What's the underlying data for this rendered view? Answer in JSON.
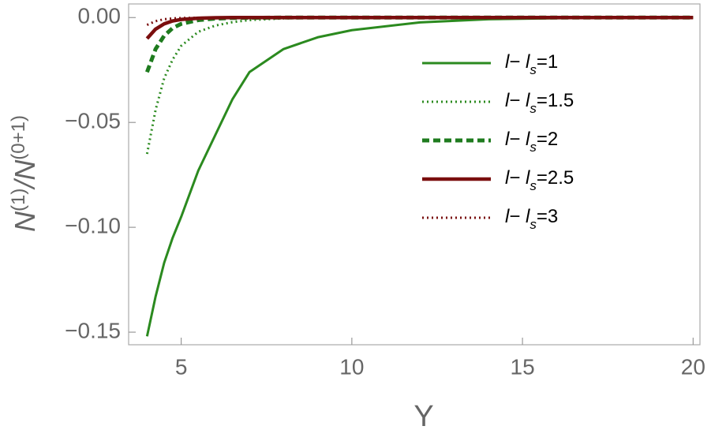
{
  "chart_data": {
    "type": "line",
    "x_label": "Y",
    "y_label": [
      "N",
      "(1)",
      "/N",
      "(0+1)"
    ],
    "x": [
      4,
      4.25,
      4.5,
      4.75,
      5,
      5.5,
      6,
      6.5,
      7,
      8,
      9,
      10,
      12,
      14,
      16,
      18,
      20
    ],
    "series": [
      {
        "name": "l− ls=1",
        "color": "#2b8a1f",
        "line_style": "solid",
        "values": [
          -0.152,
          -0.133,
          -0.117,
          -0.105,
          -0.095,
          -0.073,
          -0.056,
          -0.039,
          -0.026,
          -0.015,
          -0.0094,
          -0.006,
          -0.0023,
          -0.0008,
          -0.0003,
          -0.0001,
          0
        ]
      },
      {
        "name": "l− ls=1.5",
        "color": "#2b8a1f",
        "line_style": "dotted",
        "values": [
          -0.065,
          -0.044,
          -0.029,
          -0.02,
          -0.0135,
          -0.0068,
          -0.0038,
          -0.0022,
          -0.0012,
          -0.0004,
          -0.0002,
          -0.0001,
          0,
          0,
          0,
          0,
          0
        ]
      },
      {
        "name": "l− ls=2",
        "color": "#1e7b1e",
        "line_style": "dashed",
        "values": [
          -0.026,
          -0.015,
          -0.0087,
          -0.005,
          -0.003,
          -0.0012,
          -0.0005,
          -0.0002,
          -0.0001,
          0,
          0,
          0,
          0,
          0,
          0,
          0,
          0
        ]
      },
      {
        "name": "l− ls=2.5",
        "color": "#7a0e0e",
        "line_style": "solid-thick",
        "values": [
          -0.01,
          -0.0055,
          -0.003,
          -0.0016,
          -0.0009,
          -0.0003,
          -0.0001,
          0,
          0,
          0,
          0,
          0,
          0,
          0,
          0,
          0,
          0
        ]
      },
      {
        "name": "l− ls=3",
        "color": "#7a0e0e",
        "line_style": "dotted",
        "values": [
          -0.0035,
          -0.0017,
          -0.0008,
          -0.0004,
          -0.0002,
          -0.0001,
          0,
          0,
          0,
          0,
          0,
          0,
          0,
          0,
          0,
          0,
          0
        ]
      }
    ],
    "xlim": [
      3.46,
      20.2
    ],
    "ylim": [
      -0.156,
      0.0065
    ],
    "xticks": [
      5,
      10,
      15,
      20
    ],
    "yticks": [
      {
        "value": 0,
        "label": "0.00"
      },
      {
        "value": -0.05,
        "label": "−0.05"
      },
      {
        "value": -0.1,
        "label": "−0.10"
      },
      {
        "value": -0.15,
        "label": "−0.15"
      }
    ]
  }
}
